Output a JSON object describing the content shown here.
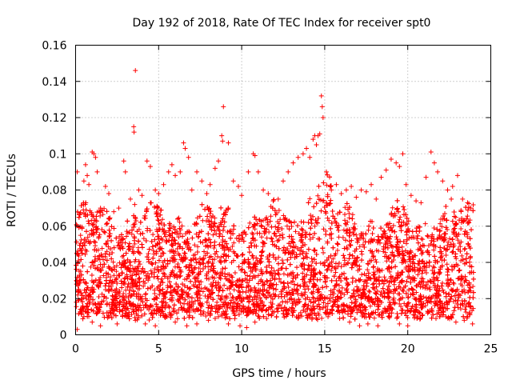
{
  "chart_data": {
    "type": "scatter",
    "title": "Day 192 of 2018, Rate Of TEC Index for receiver spt0",
    "xlabel": "GPS time / hours",
    "ylabel": "ROTI / TECUs",
    "xlim": [
      0,
      25
    ],
    "ylim": [
      0,
      0.16
    ],
    "xticks": [
      0,
      5,
      10,
      15,
      20,
      25
    ],
    "xtick_labels": [
      "0",
      "5",
      "10",
      "15",
      "20",
      "25"
    ],
    "yticks": [
      0,
      0.02,
      0.04,
      0.06,
      0.08,
      0.1,
      0.12,
      0.14,
      0.16
    ],
    "ytick_labels": [
      "0",
      "0.02",
      "0.04",
      "0.06",
      "0.08",
      "0.1",
      "0.12",
      "0.14",
      "0.16"
    ],
    "grid": true,
    "marker": "plus",
    "color": "#ff0000",
    "series": [
      {
        "name": "ROTI",
        "points": [
          [
            0.05,
            0.03
          ],
          [
            0.1,
            0.09
          ],
          [
            0.2,
            0.065
          ],
          [
            0.3,
            0.055
          ],
          [
            0.4,
            0.045
          ],
          [
            0.5,
            0.085
          ],
          [
            0.6,
            0.094
          ],
          [
            0.7,
            0.088
          ],
          [
            0.8,
            0.083
          ],
          [
            1.0,
            0.101
          ],
          [
            1.1,
            0.1
          ],
          [
            1.2,
            0.098
          ],
          [
            1.3,
            0.09
          ],
          [
            1.5,
            0.07
          ],
          [
            1.8,
            0.082
          ],
          [
            2.0,
            0.078
          ],
          [
            2.3,
            0.068
          ],
          [
            2.6,
            0.07
          ],
          [
            2.9,
            0.096
          ],
          [
            3.0,
            0.09
          ],
          [
            3.3,
            0.075
          ],
          [
            3.5,
            0.115
          ],
          [
            3.52,
            0.112
          ],
          [
            3.6,
            0.146
          ],
          [
            3.8,
            0.08
          ],
          [
            4.0,
            0.077
          ],
          [
            4.3,
            0.096
          ],
          [
            4.5,
            0.093
          ],
          [
            4.8,
            0.08
          ],
          [
            5.0,
            0.078
          ],
          [
            5.3,
            0.083
          ],
          [
            5.6,
            0.09
          ],
          [
            5.8,
            0.094
          ],
          [
            6.0,
            0.088
          ],
          [
            6.3,
            0.09
          ],
          [
            6.5,
            0.106
          ],
          [
            6.6,
            0.103
          ],
          [
            6.8,
            0.098
          ],
          [
            7.0,
            0.08
          ],
          [
            7.3,
            0.09
          ],
          [
            7.6,
            0.085
          ],
          [
            7.9,
            0.078
          ],
          [
            8.1,
            0.083
          ],
          [
            8.4,
            0.092
          ],
          [
            8.6,
            0.096
          ],
          [
            8.8,
            0.11
          ],
          [
            8.85,
            0.107
          ],
          [
            8.9,
            0.126
          ],
          [
            9.2,
            0.106
          ],
          [
            9.5,
            0.085
          ],
          [
            9.8,
            0.082
          ],
          [
            10.0,
            0.077
          ],
          [
            10.4,
            0.09
          ],
          [
            10.7,
            0.1
          ],
          [
            10.8,
            0.099
          ],
          [
            11.0,
            0.09
          ],
          [
            11.3,
            0.08
          ],
          [
            11.6,
            0.078
          ],
          [
            11.9,
            0.074
          ],
          [
            12.2,
            0.075
          ],
          [
            12.5,
            0.085
          ],
          [
            12.8,
            0.09
          ],
          [
            13.1,
            0.095
          ],
          [
            13.4,
            0.098
          ],
          [
            13.7,
            0.1
          ],
          [
            13.9,
            0.103
          ],
          [
            14.1,
            0.098
          ],
          [
            14.3,
            0.108
          ],
          [
            14.4,
            0.11
          ],
          [
            14.5,
            0.105
          ],
          [
            14.6,
            0.11
          ],
          [
            14.7,
            0.111
          ],
          [
            14.8,
            0.132
          ],
          [
            14.85,
            0.126
          ],
          [
            14.9,
            0.12
          ],
          [
            15.1,
            0.09
          ],
          [
            15.4,
            0.08
          ],
          [
            15.7,
            0.083
          ],
          [
            16.0,
            0.078
          ],
          [
            16.3,
            0.08
          ],
          [
            16.6,
            0.082
          ],
          [
            16.9,
            0.076
          ],
          [
            17.2,
            0.08
          ],
          [
            17.5,
            0.079
          ],
          [
            17.8,
            0.083
          ],
          [
            18.1,
            0.075
          ],
          [
            18.4,
            0.087
          ],
          [
            18.7,
            0.091
          ],
          [
            19.0,
            0.097
          ],
          [
            19.3,
            0.095
          ],
          [
            19.5,
            0.093
          ],
          [
            19.7,
            0.1
          ],
          [
            19.9,
            0.083
          ],
          [
            20.2,
            0.077
          ],
          [
            20.5,
            0.074
          ],
          [
            20.8,
            0.073
          ],
          [
            21.1,
            0.087
          ],
          [
            21.4,
            0.101
          ],
          [
            21.6,
            0.095
          ],
          [
            21.8,
            0.09
          ],
          [
            22.1,
            0.085
          ],
          [
            22.4,
            0.08
          ],
          [
            22.7,
            0.082
          ],
          [
            23.0,
            0.088
          ],
          [
            23.3,
            0.075
          ],
          [
            23.6,
            0.073
          ],
          [
            23.8,
            0.07
          ],
          [
            0.1,
            0.003
          ],
          [
            0.5,
            0.01
          ],
          [
            1.0,
            0.007
          ],
          [
            1.5,
            0.005
          ],
          [
            2.0,
            0.01
          ],
          [
            2.5,
            0.006
          ],
          [
            3.0,
            0.012
          ],
          [
            3.6,
            0.008
          ],
          [
            4.2,
            0.006
          ],
          [
            4.8,
            0.005
          ],
          [
            5.5,
            0.01
          ],
          [
            6.0,
            0.007
          ],
          [
            6.7,
            0.005
          ],
          [
            7.3,
            0.006
          ],
          [
            8.0,
            0.008
          ],
          [
            8.6,
            0.01
          ],
          [
            9.2,
            0.006
          ],
          [
            9.9,
            0.005
          ],
          [
            10.3,
            0.004
          ],
          [
            10.8,
            0.007
          ],
          [
            11.5,
            0.009
          ],
          [
            12.1,
            0.01
          ],
          [
            12.8,
            0.012
          ],
          [
            13.4,
            0.009
          ],
          [
            14.0,
            0.011
          ],
          [
            14.6,
            0.012
          ],
          [
            15.2,
            0.01
          ],
          [
            15.9,
            0.009
          ],
          [
            16.5,
            0.007
          ],
          [
            17.1,
            0.005
          ],
          [
            17.6,
            0.006
          ],
          [
            18.2,
            0.005
          ],
          [
            18.9,
            0.01
          ],
          [
            19.5,
            0.006
          ],
          [
            20.0,
            0.005
          ],
          [
            20.6,
            0.01
          ],
          [
            21.2,
            0.012
          ],
          [
            21.7,
            0.009
          ],
          [
            22.3,
            0.01
          ],
          [
            22.9,
            0.007
          ],
          [
            23.4,
            0.008
          ],
          [
            23.9,
            0.006
          ]
        ]
      }
    ]
  }
}
